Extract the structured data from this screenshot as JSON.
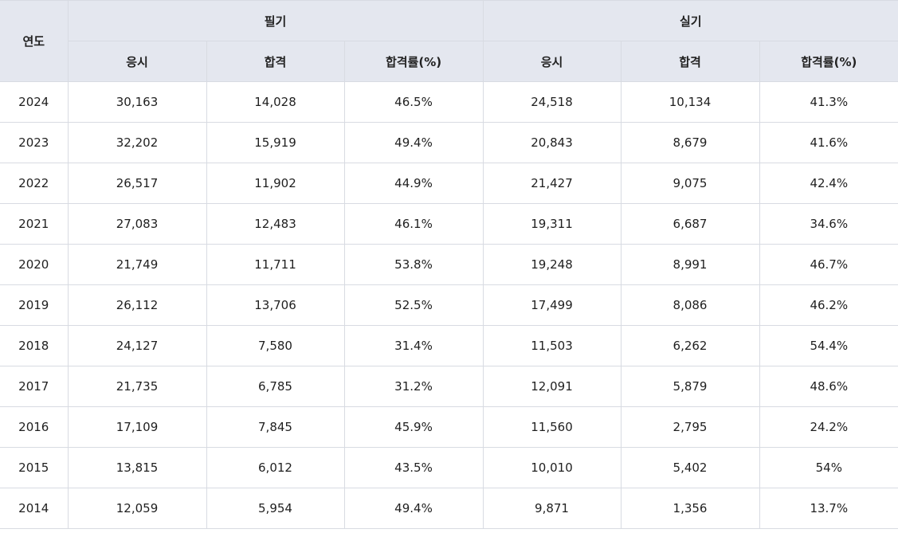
{
  "table": {
    "year_header": "연도",
    "groups": [
      "필기",
      "실기"
    ],
    "sub_headers": [
      "응시",
      "합격",
      "합격률(%)",
      "응시",
      "합격",
      "합격률(%)"
    ],
    "rows": [
      [
        "2024",
        "30,163",
        "14,028",
        "46.5%",
        "24,518",
        "10,134",
        "41.3%"
      ],
      [
        "2023",
        "32,202",
        "15,919",
        "49.4%",
        "20,843",
        "8,679",
        "41.6%"
      ],
      [
        "2022",
        "26,517",
        "11,902",
        "44.9%",
        "21,427",
        "9,075",
        "42.4%"
      ],
      [
        "2021",
        "27,083",
        "12,483",
        "46.1%",
        "19,311",
        "6,687",
        "34.6%"
      ],
      [
        "2020",
        "21,749",
        "11,711",
        "53.8%",
        "19,248",
        "8,991",
        "46.7%"
      ],
      [
        "2019",
        "26,112",
        "13,706",
        "52.5%",
        "17,499",
        "8,086",
        "46.2%"
      ],
      [
        "2018",
        "24,127",
        "7,580",
        "31.4%",
        "11,503",
        "6,262",
        "54.4%"
      ],
      [
        "2017",
        "21,735",
        "6,785",
        "31.2%",
        "12,091",
        "5,879",
        "48.6%"
      ],
      [
        "2016",
        "17,109",
        "7,845",
        "45.9%",
        "11,560",
        "2,795",
        "24.2%"
      ],
      [
        "2015",
        "13,815",
        "6,012",
        "43.5%",
        "10,010",
        "5,402",
        "54%"
      ],
      [
        "2014",
        "12,059",
        "5,954",
        "49.4%",
        "9,871",
        "1,356",
        "13.7%"
      ]
    ]
  }
}
